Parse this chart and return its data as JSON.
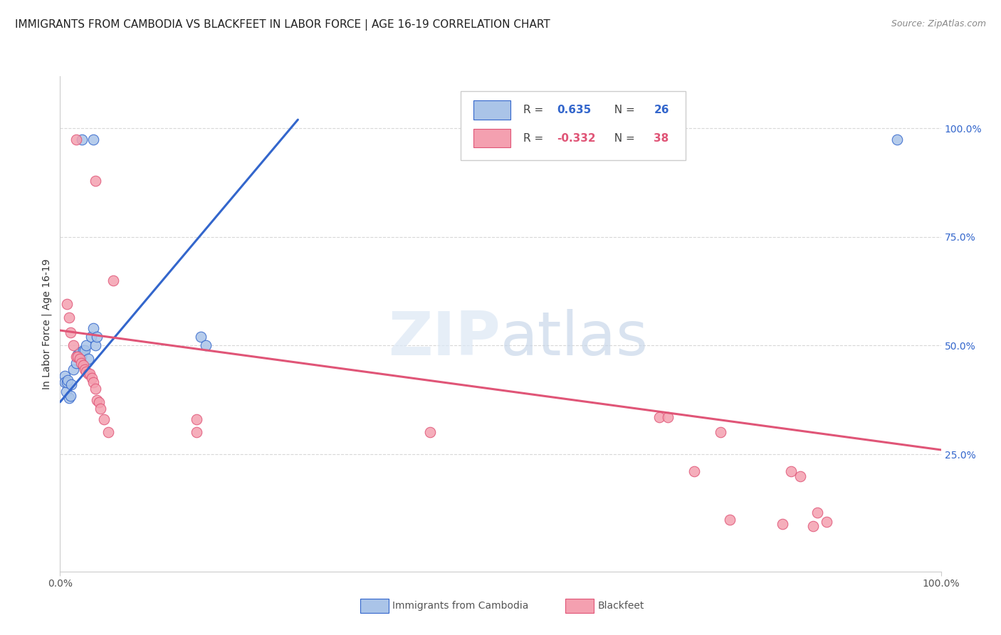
{
  "title": "IMMIGRANTS FROM CAMBODIA VS BLACKFEET IN LABOR FORCE | AGE 16-19 CORRELATION CHART",
  "source": "Source: ZipAtlas.com",
  "ylabel": "In Labor Force | Age 16-19",
  "ytick_labels": [
    "100.0%",
    "75.0%",
    "50.0%",
    "25.0%"
  ],
  "ytick_values": [
    1.0,
    0.75,
    0.5,
    0.25
  ],
  "xlim": [
    0.0,
    1.0
  ],
  "ylim": [
    -0.02,
    1.12
  ],
  "blue_scatter_x": [
    0.025,
    0.038,
    0.005,
    0.005,
    0.007,
    0.008,
    0.009,
    0.01,
    0.012,
    0.013,
    0.015,
    0.018,
    0.02,
    0.022,
    0.024,
    0.026,
    0.028,
    0.03,
    0.032,
    0.035,
    0.038,
    0.04,
    0.042,
    0.16,
    0.165,
    0.95
  ],
  "blue_scatter_y": [
    0.975,
    0.975,
    0.43,
    0.415,
    0.395,
    0.415,
    0.42,
    0.38,
    0.385,
    0.41,
    0.445,
    0.46,
    0.48,
    0.485,
    0.475,
    0.49,
    0.49,
    0.5,
    0.47,
    0.52,
    0.54,
    0.5,
    0.52,
    0.52,
    0.5,
    0.975
  ],
  "pink_scatter_x": [
    0.018,
    0.04,
    0.008,
    0.01,
    0.012,
    0.015,
    0.018,
    0.02,
    0.022,
    0.024,
    0.026,
    0.028,
    0.03,
    0.032,
    0.034,
    0.036,
    0.038,
    0.04,
    0.042,
    0.044,
    0.046,
    0.05,
    0.055,
    0.06,
    0.155,
    0.155,
    0.42,
    0.68,
    0.69,
    0.72,
    0.75,
    0.76,
    0.82,
    0.83,
    0.84,
    0.855,
    0.86,
    0.87
  ],
  "pink_scatter_y": [
    0.975,
    0.88,
    0.595,
    0.565,
    0.53,
    0.5,
    0.475,
    0.475,
    0.47,
    0.46,
    0.455,
    0.445,
    0.44,
    0.435,
    0.435,
    0.425,
    0.415,
    0.4,
    0.375,
    0.37,
    0.355,
    0.33,
    0.3,
    0.65,
    0.33,
    0.3,
    0.3,
    0.335,
    0.335,
    0.21,
    0.3,
    0.1,
    0.09,
    0.21,
    0.2,
    0.085,
    0.115,
    0.095
  ],
  "blue_line_x": [
    0.0,
    0.27
  ],
  "blue_line_y": [
    0.37,
    1.02
  ],
  "pink_line_x": [
    0.0,
    1.0
  ],
  "pink_line_y": [
    0.535,
    0.26
  ],
  "blue_color": "#aac4e8",
  "pink_color": "#f4a0b0",
  "blue_line_color": "#3366cc",
  "pink_line_color": "#e05577",
  "background_color": "#ffffff",
  "grid_color": "#d8d8d8",
  "title_fontsize": 11,
  "axis_label_fontsize": 10,
  "tick_fontsize": 10,
  "scatter_size": 110
}
